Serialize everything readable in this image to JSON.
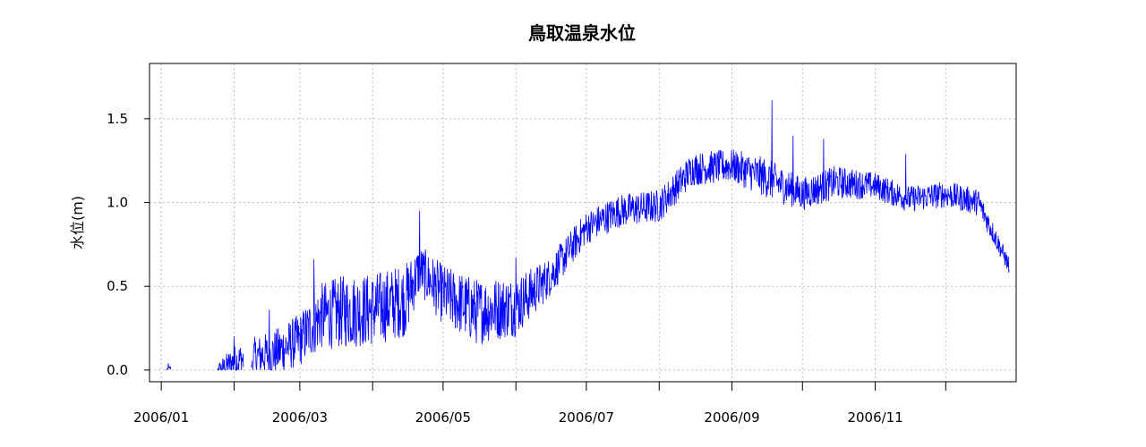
{
  "chart_data": {
    "type": "line",
    "title": "鳥取温泉水位",
    "xlabel": "",
    "ylabel": "水位(m)",
    "grid": true,
    "series_color": "#0000ff",
    "x_range": [
      "2005-12-27",
      "2006-12-31"
    ],
    "ylim": [
      -0.07,
      1.83
    ],
    "y_ticks": [
      0.0,
      0.5,
      1.0,
      1.5
    ],
    "y_tick_labels": [
      "0.0",
      "0.5",
      "1.0",
      "1.5"
    ],
    "x_ticks": [
      "2006-01-01",
      "2006-02-01",
      "2006-03-01",
      "2006-04-01",
      "2006-05-01",
      "2006-06-01",
      "2006-07-01",
      "2006-08-01",
      "2006-09-01",
      "2006-10-01",
      "2006-11-01",
      "2006-12-01"
    ],
    "x_tick_labels": [
      "2006/01",
      "",
      "2006/03",
      "",
      "2006/05",
      "",
      "2006/07",
      "",
      "2006/09",
      "",
      "2006/11",
      ""
    ],
    "series": [
      {
        "trend_dates": [
          "2006-01-03",
          "2006-01-05",
          "2006-01-25",
          "2006-02-01",
          "2006-02-10",
          "2006-02-18",
          "2006-03-01",
          "2006-03-10",
          "2006-03-20",
          "2006-04-01",
          "2006-04-15",
          "2006-04-21",
          "2006-05-01",
          "2006-05-15",
          "2006-06-01",
          "2006-06-15",
          "2006-07-01",
          "2006-07-15",
          "2006-08-01",
          "2006-08-15",
          "2006-09-01",
          "2006-09-15",
          "2006-10-01",
          "2006-10-15",
          "2006-11-01",
          "2006-11-15",
          "2006-12-01",
          "2006-12-15",
          "2006-12-28"
        ],
        "trend_values": [
          0.0,
          0.01,
          0.0,
          0.05,
          0.08,
          0.1,
          0.18,
          0.32,
          0.35,
          0.36,
          0.42,
          0.6,
          0.45,
          0.35,
          0.38,
          0.55,
          0.85,
          0.95,
          0.98,
          1.2,
          1.22,
          1.15,
          1.05,
          1.12,
          1.1,
          1.02,
          1.05,
          1.0,
          0.62
        ],
        "spread_values": [
          0.0,
          0.02,
          0.04,
          0.1,
          0.12,
          0.14,
          0.16,
          0.2,
          0.22,
          0.22,
          0.22,
          0.15,
          0.18,
          0.2,
          0.18,
          0.12,
          0.1,
          0.1,
          0.1,
          0.1,
          0.1,
          0.12,
          0.1,
          0.1,
          0.08,
          0.08,
          0.08,
          0.08,
          0.05
        ],
        "spikes": [
          {
            "date": "2006-01-04",
            "value": 0.04
          },
          {
            "date": "2006-02-01",
            "value": 0.2
          },
          {
            "date": "2006-02-16",
            "value": 0.36
          },
          {
            "date": "2006-03-07",
            "value": 0.66
          },
          {
            "date": "2006-04-21",
            "value": 0.95
          },
          {
            "date": "2006-06-01",
            "value": 0.67
          },
          {
            "date": "2006-09-18",
            "value": 1.61
          },
          {
            "date": "2006-09-27",
            "value": 1.4
          },
          {
            "date": "2006-10-10",
            "value": 1.38
          },
          {
            "date": "2006-11-14",
            "value": 1.29
          },
          {
            "date": "2006-12-28",
            "value": 0.6
          }
        ]
      }
    ]
  }
}
